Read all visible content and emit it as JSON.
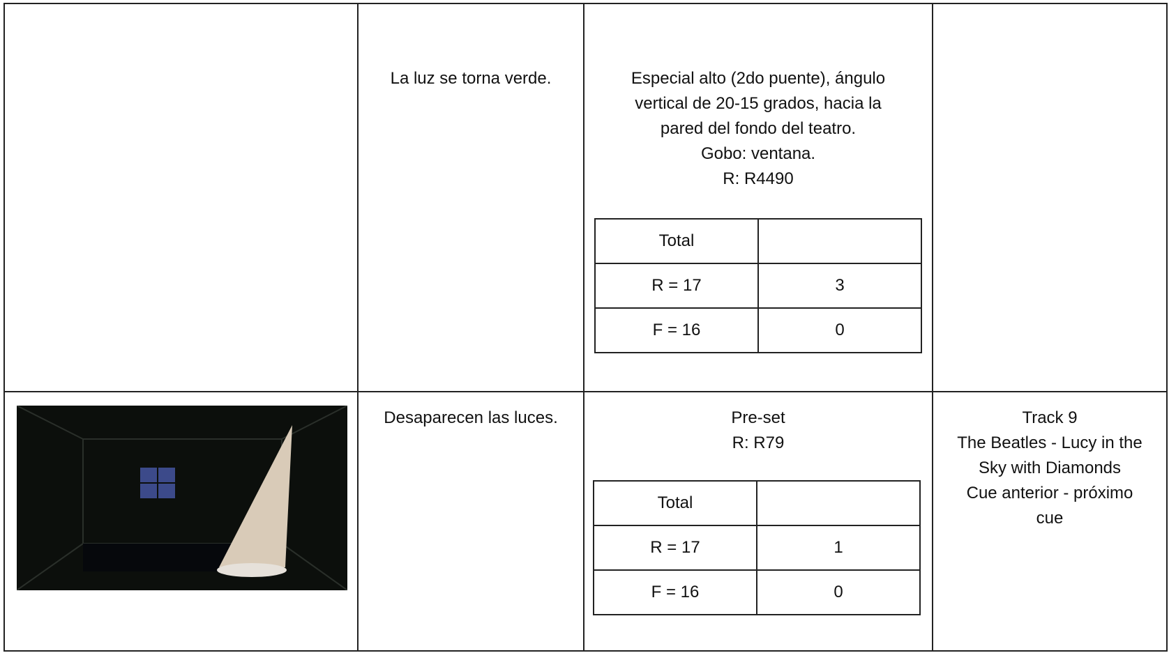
{
  "table": {
    "rows": [
      {
        "description": "La luz se torna verde.",
        "lighting": {
          "lines": [
            "Especial alto (2do puente), ángulo",
            "vertical de 20-15 grados, hacia la",
            "pared del fondo del teatro.",
            "Gobo: ventana.",
            "R: R4490"
          ],
          "levels": {
            "header": "Total",
            "rows": [
              [
                "R = 17",
                3
              ],
              [
                "F = 16",
                0
              ]
            ]
          }
        }
      },
      {
        "description": "Desaparecen las luces.",
        "lighting": {
          "lines": [
            "Pre-set",
            "R:  R79"
          ],
          "levels": {
            "header": "Total",
            "rows": [
              [
                "R = 17",
                1
              ],
              [
                "F = 16",
                0
              ]
            ]
          }
        },
        "sound": {
          "lines": [
            "Track 9",
            "The Beatles - Lucy in the",
            "Sky with Diamonds",
            "Cue anterior - próximo",
            "cue"
          ]
        }
      }
    ]
  }
}
